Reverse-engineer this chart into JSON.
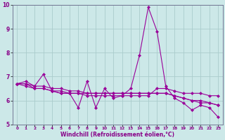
{
  "xlabel": "Windchill (Refroidissement éolien,°C)",
  "background_color": "#cce8e8",
  "line_color": "#990099",
  "grid_color": "#aacccc",
  "spine_color": "#666688",
  "x_values": [
    0,
    1,
    2,
    3,
    4,
    5,
    6,
    7,
    8,
    9,
    10,
    11,
    12,
    13,
    14,
    15,
    16,
    17,
    18,
    19,
    20,
    21,
    22,
    23
  ],
  "series": [
    [
      6.7,
      6.8,
      6.6,
      7.1,
      6.4,
      6.3,
      6.3,
      5.7,
      6.8,
      5.7,
      6.5,
      6.1,
      6.2,
      6.5,
      7.9,
      9.9,
      8.9,
      6.6,
      6.1,
      5.9,
      5.6,
      5.8,
      5.7,
      5.3
    ],
    [
      6.7,
      6.7,
      6.5,
      6.5,
      6.4,
      6.3,
      6.3,
      6.3,
      6.3,
      6.3,
      6.3,
      6.3,
      6.3,
      6.3,
      6.3,
      6.3,
      6.3,
      6.3,
      6.2,
      6.1,
      6.0,
      5.9,
      5.9,
      5.8
    ],
    [
      6.7,
      6.6,
      6.5,
      6.5,
      6.4,
      6.4,
      6.3,
      6.3,
      6.2,
      6.2,
      6.2,
      6.2,
      6.2,
      6.2,
      6.2,
      6.2,
      6.5,
      6.5,
      6.4,
      6.3,
      6.3,
      6.3,
      6.2,
      6.2
    ],
    [
      6.7,
      6.7,
      6.6,
      6.6,
      6.5,
      6.5,
      6.4,
      6.4,
      6.3,
      6.3,
      6.3,
      6.3,
      6.3,
      6.3,
      6.3,
      6.3,
      6.3,
      6.3,
      6.2,
      6.1,
      6.0,
      6.0,
      5.9,
      5.8
    ]
  ],
  "ylim": [
    5,
    10
  ],
  "xlim": [
    -0.5,
    23.5
  ],
  "yticks": [
    5,
    6,
    7,
    8,
    9,
    10
  ],
  "xticks": [
    0,
    1,
    2,
    3,
    4,
    5,
    6,
    7,
    8,
    9,
    10,
    11,
    12,
    13,
    14,
    15,
    16,
    17,
    18,
    19,
    20,
    21,
    22,
    23
  ],
  "marker": "D",
  "marker_size": 2.2,
  "line_width": 0.8,
  "tick_color": "#880088",
  "label_color": "#880088",
  "xtick_fontsize": 4.2,
  "ytick_fontsize": 5.5,
  "xlabel_fontsize": 5.5
}
